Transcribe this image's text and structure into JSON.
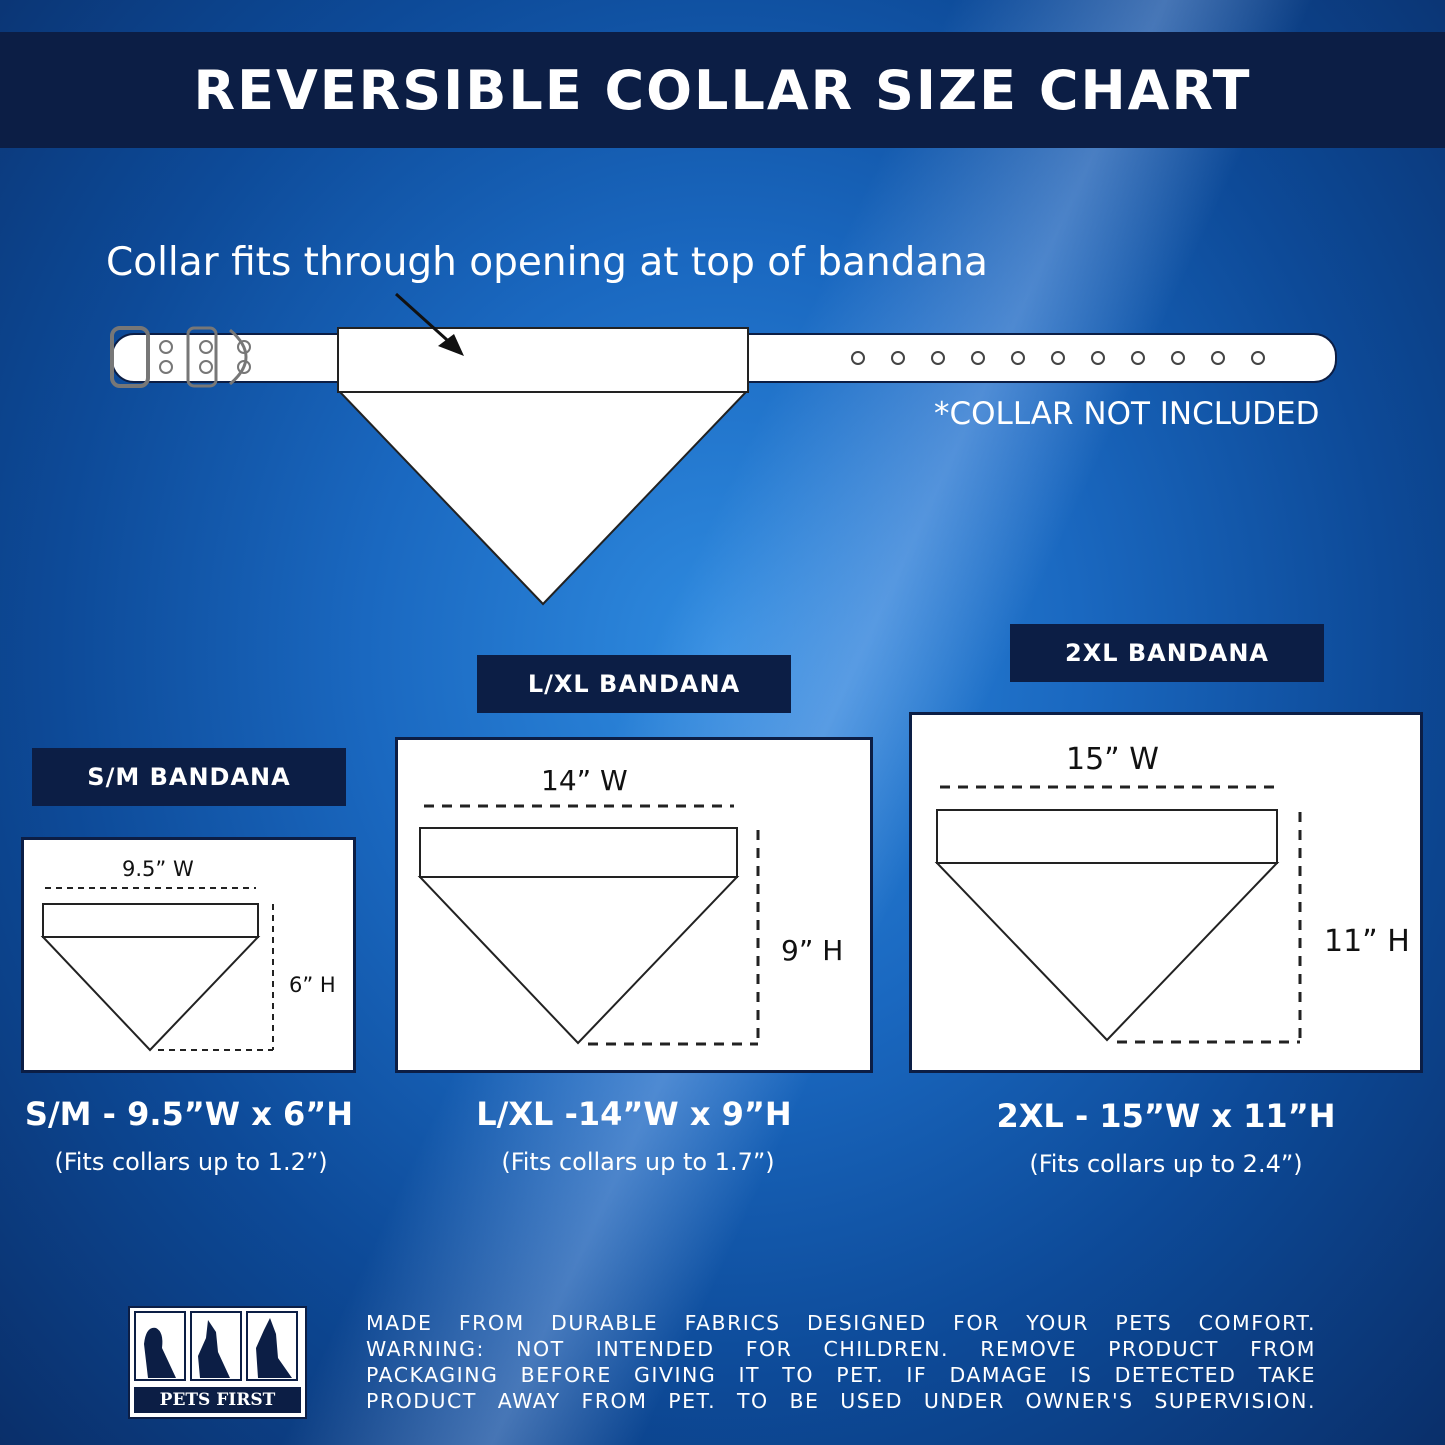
{
  "title": "REVERSIBLE COLLAR SIZE CHART",
  "callout": "Collar fits through opening at top of bandana",
  "collar_note": "*COLLAR NOT INCLUDED",
  "sizes": [
    {
      "label": "S/M BANDANA",
      "width": "9.5” W",
      "height": "6” H",
      "summary": "S/M - 9.5”W x 6”H",
      "fit": "(Fits collars up to 1.2”)"
    },
    {
      "label": "L/XL BANDANA",
      "width": "14” W",
      "height": "9” H",
      "summary": "L/XL -14”W x 9”H",
      "fit": "(Fits collars up to 1.7”)"
    },
    {
      "label": "2XL BANDANA",
      "width": "15” W",
      "height": "11” H",
      "summary": "2XL - 15”W x 11”H",
      "fit": "(Fits collars up to 2.4”)"
    }
  ],
  "logo": {
    "text": "PETS FIRST"
  },
  "footer": [
    "MADE FROM DURABLE FABRICS DESIGNED FOR YOUR PETS COMFORT.",
    "WARNING: NOT INTENDED FOR CHILDREN. REMOVE PRODUCT FROM",
    "PACKAGING BEFORE GIVING IT TO PET. IF DAMAGE IS DETECTED TAKE",
    "PRODUCT AWAY FROM PET. TO BE USED UNDER OWNER'S SUPERVISION."
  ],
  "colors": {
    "navy": "#0c1e45",
    "blue": "#1a68c0"
  }
}
